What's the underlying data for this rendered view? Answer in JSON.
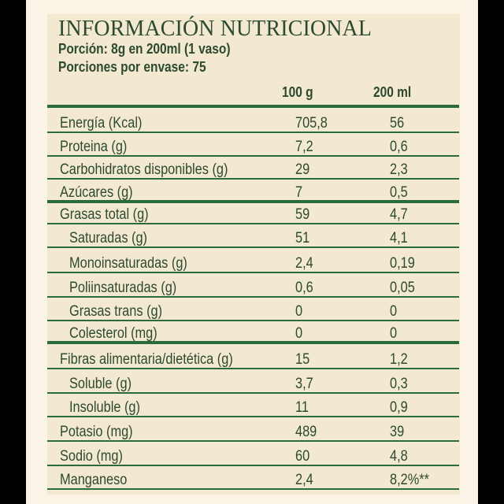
{
  "title": "INFORMACIÓN NUTRICIONAL",
  "serving": "Porción: 8g en 200ml (1 vaso)",
  "servings_per_container": "Porciones por envase: 75",
  "columns": [
    "100 g",
    "200 ml"
  ],
  "colors": {
    "text": "#2c4a2f",
    "rule": "#2b6a3b",
    "panel_bg": "#f3e8d0",
    "outer_bg": "#fbf3e6"
  },
  "rows": [
    {
      "label": "Energía (Kcal)",
      "v100g": "705,8",
      "v200ml": "56",
      "indent": false
    },
    {
      "label": "Proteina (g)",
      "v100g": "7,2",
      "v200ml": "0,6",
      "indent": false
    },
    {
      "label": "Carbohidratos disponibles (g)",
      "v100g": "29",
      "v200ml": "2,3",
      "indent": false
    },
    {
      "label": "Azúcares (g)",
      "v100g": "7",
      "v200ml": "0,5",
      "indent": false
    },
    {
      "label": "Grasas total (g)",
      "v100g": "59",
      "v200ml": "4,7",
      "indent": false
    },
    {
      "label": "Saturadas (g)",
      "v100g": "51",
      "v200ml": "4,1",
      "indent": true
    },
    {
      "label": "Monoinsaturadas (g)",
      "v100g": "2,4",
      "v200ml": "0,19",
      "indent": true
    },
    {
      "label": "Poliinsaturadas (g)",
      "v100g": "0,6",
      "v200ml": "0,05",
      "indent": true
    },
    {
      "label": "Grasas trans (g)",
      "v100g": "0",
      "v200ml": "0",
      "indent": true
    },
    {
      "label": "Colesterol (mg)",
      "v100g": "0",
      "v200ml": "0",
      "indent": true
    },
    {
      "label": "Fibras alimentaria/dietética (g)",
      "v100g": "15",
      "v200ml": "1,2",
      "indent": false
    },
    {
      "label": "Soluble  (g)",
      "v100g": "3,7",
      "v200ml": "0,3",
      "indent": true
    },
    {
      "label": "Insoluble (g)",
      "v100g": "11",
      "v200ml": "0,9",
      "indent": true
    },
    {
      "label": "Potasio (mg)",
      "v100g": "489",
      "v200ml": "39",
      "indent": false
    },
    {
      "label": "Sodio (mg)",
      "v100g": "60",
      "v200ml": "4,8",
      "indent": false
    },
    {
      "label": "Manganeso",
      "v100g": "2,4",
      "v200ml": "8,2%**",
      "indent": false
    }
  ]
}
